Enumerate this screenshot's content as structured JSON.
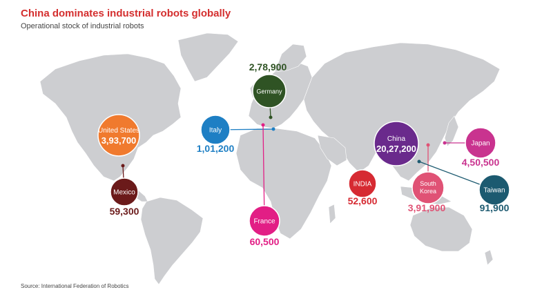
{
  "header": {
    "title": "China dominates industrial robots globally",
    "subtitle": "Operational stock of industrial robots"
  },
  "footer": {
    "source": "Source: International Federation of Robotics"
  },
  "colors": {
    "land": "#cdced1",
    "title": "#d42e2e"
  },
  "markers": [
    {
      "id": "united-states",
      "name": "United States",
      "value": "3,93,700",
      "color": "#f07a2e"
    },
    {
      "id": "mexico",
      "name": "Mexico",
      "value": "59,300",
      "color": "#6b1a1a"
    },
    {
      "id": "germany",
      "name": "Germany",
      "value": "2,78,900",
      "color": "#2f5324"
    },
    {
      "id": "italy",
      "name": "Italy",
      "value": "1,01,200",
      "color": "#1e7fc4"
    },
    {
      "id": "france",
      "name": "France",
      "value": "60,500",
      "color": "#e21e85"
    },
    {
      "id": "china",
      "name": "China",
      "value": "20,27,200",
      "color": "#6a2a8c"
    },
    {
      "id": "india",
      "name": "INDIA",
      "value": "52,600",
      "color": "#d62a32"
    },
    {
      "id": "south-korea",
      "name": "South Korea",
      "value": "3,91,900",
      "color": "#e05275"
    },
    {
      "id": "japan",
      "name": "Japan",
      "value": "4,50,500",
      "color": "#c9338f"
    },
    {
      "id": "taiwan",
      "name": "Taiwan",
      "value": "91,900",
      "color": "#1c5a70"
    }
  ]
}
